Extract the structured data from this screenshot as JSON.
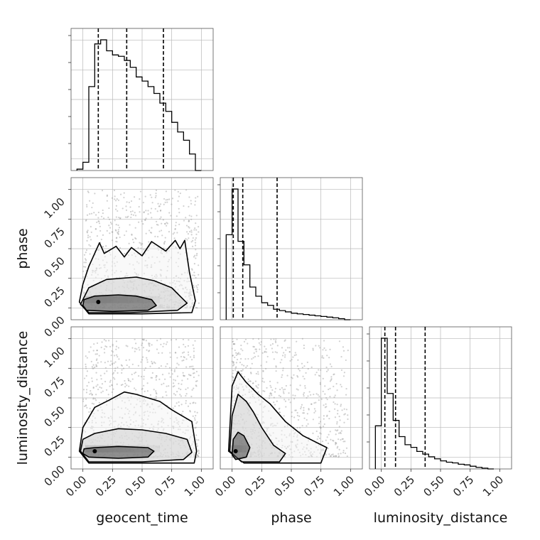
{
  "chart_data": {
    "type": "corner",
    "parameters": [
      "geocent_time",
      "phase",
      "luminosity_distance"
    ],
    "axis_range": [
      -0.1,
      1.1
    ],
    "tick_labels": [
      "0.00",
      "0.25",
      "0.50",
      "0.75",
      "1.00"
    ],
    "ticks": [
      0,
      0.25,
      0.5,
      0.75,
      1.0
    ],
    "grid": true,
    "histograms": [
      {
        "parameter": "geocent_time",
        "bin_width": 0.05,
        "bin_start": -0.05,
        "heights": [
          0.01,
          0.06,
          0.61,
          0.92,
          0.95,
          0.87,
          0.84,
          0.83,
          0.8,
          0.75,
          0.68,
          0.65,
          0.61,
          0.56,
          0.49,
          0.43,
          0.35,
          0.28,
          0.22,
          0.12,
          0.0
        ],
        "quantiles": [
          0.13,
          0.37,
          0.68
        ]
      },
      {
        "parameter": "phase",
        "bin_width": 0.05,
        "bin_start": -0.05,
        "heights": [
          0.65,
          1.0,
          0.6,
          0.42,
          0.25,
          0.18,
          0.13,
          0.11,
          0.08,
          0.07,
          0.06,
          0.05,
          0.045,
          0.04,
          0.035,
          0.03,
          0.025,
          0.02,
          0.015,
          0.008,
          0.0
        ],
        "quantiles": [
          0.01,
          0.09,
          0.38
        ]
      },
      {
        "parameter": "luminosity_distance",
        "bin_width": 0.05,
        "bin_start": -0.05,
        "heights": [
          0.32,
          0.97,
          0.56,
          0.36,
          0.24,
          0.18,
          0.16,
          0.13,
          0.11,
          0.09,
          0.075,
          0.06,
          0.05,
          0.045,
          0.035,
          0.03,
          0.02,
          0.012,
          0.006,
          0.0
        ],
        "quantiles": [
          0.03,
          0.12,
          0.37
        ]
      }
    ],
    "joint": [
      {
        "x": "geocent_time",
        "y": "phase",
        "peak": [
          0.13,
          0.05
        ],
        "contours": [
          [
            [
              0.0,
              0.02
            ],
            [
              0.03,
              -0.02
            ],
            [
              0.25,
              -0.03
            ],
            [
              0.55,
              -0.02
            ],
            [
              0.62,
              0.02
            ],
            [
              0.58,
              0.07
            ],
            [
              0.45,
              0.1
            ],
            [
              0.3,
              0.11
            ],
            [
              0.1,
              0.1
            ],
            [
              0.01,
              0.07
            ]
          ],
          [
            [
              -0.02,
              0.03
            ],
            [
              0.05,
              -0.04
            ],
            [
              0.4,
              -0.04
            ],
            [
              0.8,
              -0.02
            ],
            [
              0.88,
              0.04
            ],
            [
              0.75,
              0.17
            ],
            [
              0.6,
              0.23
            ],
            [
              0.45,
              0.26
            ],
            [
              0.2,
              0.24
            ],
            [
              0.05,
              0.17
            ]
          ],
          [
            [
              -0.03,
              0.05
            ],
            [
              0.05,
              -0.05
            ],
            [
              0.5,
              -0.05
            ],
            [
              0.92,
              -0.04
            ],
            [
              0.95,
              0.06
            ],
            [
              0.9,
              0.3
            ],
            [
              0.86,
              0.57
            ],
            [
              0.82,
              0.5
            ],
            [
              0.78,
              0.57
            ],
            [
              0.7,
              0.48
            ],
            [
              0.58,
              0.56
            ],
            [
              0.5,
              0.44
            ],
            [
              0.41,
              0.51
            ],
            [
              0.35,
              0.43
            ],
            [
              0.28,
              0.52
            ],
            [
              0.18,
              0.46
            ],
            [
              0.14,
              0.55
            ],
            [
              0.05,
              0.35
            ],
            [
              0.0,
              0.2
            ]
          ]
        ]
      },
      {
        "x": "geocent_time",
        "y": "luminosity_distance",
        "peak": [
          0.1,
          0.05
        ],
        "contours": [
          [
            [
              0.0,
              0.03
            ],
            [
              0.05,
              0.0
            ],
            [
              0.3,
              -0.01
            ],
            [
              0.55,
              0.0
            ],
            [
              0.6,
              0.05
            ],
            [
              0.55,
              0.08
            ],
            [
              0.3,
              0.09
            ],
            [
              0.1,
              0.08
            ],
            [
              0.01,
              0.07
            ]
          ],
          [
            [
              -0.02,
              0.05
            ],
            [
              0.05,
              -0.04
            ],
            [
              0.5,
              -0.04
            ],
            [
              0.85,
              -0.02
            ],
            [
              0.92,
              0.04
            ],
            [
              0.88,
              0.15
            ],
            [
              0.7,
              0.2
            ],
            [
              0.5,
              0.23
            ],
            [
              0.3,
              0.24
            ],
            [
              0.1,
              0.2
            ],
            [
              0.0,
              0.15
            ]
          ],
          [
            [
              -0.03,
              0.05
            ],
            [
              0.05,
              -0.05
            ],
            [
              0.5,
              -0.05
            ],
            [
              0.94,
              -0.05
            ],
            [
              0.96,
              0.05
            ],
            [
              0.92,
              0.3
            ],
            [
              0.75,
              0.4
            ],
            [
              0.65,
              0.47
            ],
            [
              0.55,
              0.5
            ],
            [
              0.45,
              0.53
            ],
            [
              0.35,
              0.55
            ],
            [
              0.22,
              0.48
            ],
            [
              0.1,
              0.42
            ],
            [
              0.0,
              0.25
            ]
          ]
        ]
      },
      {
        "x": "phase",
        "y": "luminosity_distance",
        "peak": [
          0.03,
          0.05
        ],
        "contours": [
          [
            [
              0.0,
              0.02
            ],
            [
              0.03,
              -0.02
            ],
            [
              0.12,
              0.0
            ],
            [
              0.15,
              0.08
            ],
            [
              0.1,
              0.18
            ],
            [
              0.05,
              0.21
            ],
            [
              0.01,
              0.15
            ]
          ],
          [
            [
              -0.02,
              0.05
            ],
            [
              0.08,
              -0.04
            ],
            [
              0.4,
              -0.04
            ],
            [
              0.45,
              0.03
            ],
            [
              0.35,
              0.1
            ],
            [
              0.25,
              0.25
            ],
            [
              0.18,
              0.38
            ],
            [
              0.12,
              0.47
            ],
            [
              0.05,
              0.53
            ],
            [
              0.0,
              0.35
            ]
          ],
          [
            [
              -0.03,
              0.05
            ],
            [
              0.1,
              -0.05
            ],
            [
              0.75,
              -0.05
            ],
            [
              0.8,
              0.08
            ],
            [
              0.6,
              0.18
            ],
            [
              0.45,
              0.3
            ],
            [
              0.32,
              0.45
            ],
            [
              0.22,
              0.53
            ],
            [
              0.12,
              0.63
            ],
            [
              0.05,
              0.72
            ],
            [
              0.0,
              0.6
            ]
          ]
        ]
      }
    ]
  }
}
